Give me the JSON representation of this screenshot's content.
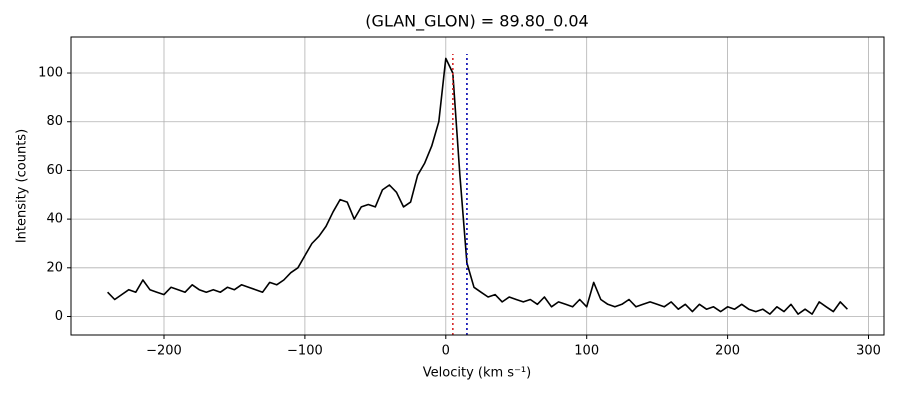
{
  "chart_data": {
    "type": "line",
    "title": "(GLAN_GLON) = 89.80_0.04",
    "x_label": "Velocity (km s⁻¹)",
    "y_label": "Intensity (counts)",
    "x": [
      -240,
      -235,
      -230,
      -225,
      -220,
      -215,
      -210,
      -205,
      -200,
      -195,
      -190,
      -185,
      -180,
      -175,
      -170,
      -165,
      -160,
      -155,
      -150,
      -145,
      -140,
      -135,
      -130,
      -125,
      -120,
      -115,
      -110,
      -105,
      -100,
      -95,
      -90,
      -85,
      -80,
      -75,
      -70,
      -65,
      -60,
      -55,
      -50,
      -45,
      -40,
      -35,
      -30,
      -25,
      -20,
      -15,
      -10,
      -5,
      0,
      5,
      10,
      15,
      20,
      25,
      30,
      35,
      40,
      45,
      50,
      55,
      60,
      65,
      70,
      75,
      80,
      85,
      90,
      95,
      100,
      105,
      110,
      115,
      120,
      125,
      130,
      135,
      140,
      145,
      150,
      155,
      160,
      165,
      170,
      175,
      180,
      185,
      190,
      195,
      200,
      205,
      210,
      215,
      220,
      225,
      230,
      235,
      240,
      245,
      250,
      255,
      260,
      265,
      270,
      275,
      280,
      285
    ],
    "series": [
      {
        "color": "#000000",
        "values": [
          10,
          7,
          9,
          11,
          10,
          15,
          11,
          10,
          9,
          12,
          11,
          10,
          13,
          11,
          10,
          11,
          10,
          12,
          11,
          13,
          12,
          11,
          10,
          14,
          13,
          15,
          18,
          20,
          25,
          30,
          33,
          37,
          43,
          48,
          47,
          40,
          45,
          46,
          45,
          52,
          54,
          51,
          45,
          47,
          58,
          63,
          70,
          80,
          106,
          100,
          58,
          22,
          12,
          10,
          8,
          9,
          6,
          8,
          7,
          6,
          7,
          5,
          8,
          4,
          6,
          5,
          4,
          7,
          4,
          14,
          7,
          5,
          4,
          5,
          7,
          4,
          5,
          6,
          5,
          4,
          6,
          3,
          5,
          2,
          5,
          3,
          4,
          2,
          4,
          3,
          5,
          3,
          2,
          3,
          1,
          4,
          2,
          5,
          1,
          3,
          1,
          6,
          4,
          2,
          6,
          3
        ]
      }
    ],
    "vlines": [
      {
        "value": 5,
        "color": "#d62728"
      },
      {
        "value": 15,
        "color": "#0000b0"
      }
    ],
    "xlim": [
      -266,
      311
    ],
    "ylim": [
      -7.6,
      114.8
    ],
    "xticks": [
      {
        "value": -200,
        "label": "−200"
      },
      {
        "value": -100,
        "label": "−100"
      },
      0,
      100,
      200,
      300
    ],
    "yticks": [
      0,
      20,
      40,
      60,
      80,
      100
    ],
    "grid": true
  }
}
